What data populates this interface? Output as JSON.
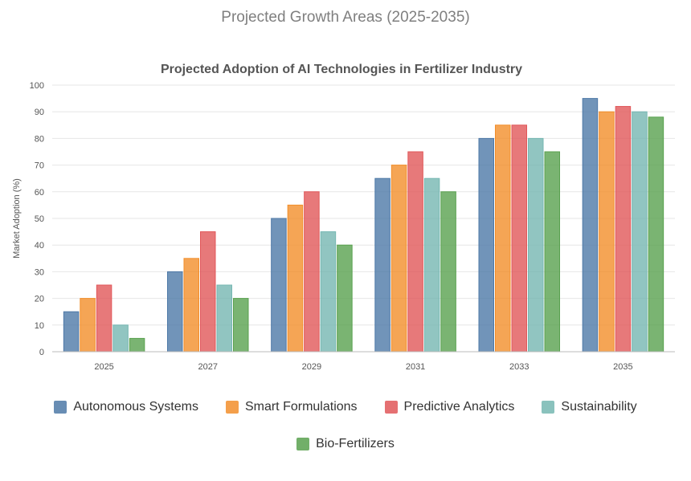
{
  "page": {
    "title": "Projected Growth Areas (2025-2035)"
  },
  "chart_data": {
    "type": "bar",
    "title": "Projected Adoption of AI Technologies in Fertilizer Industry",
    "xlabel": "",
    "ylabel": "Market Adoption (%)",
    "ylim": [
      0,
      100
    ],
    "yticks": [
      "0",
      "10",
      "20",
      "30",
      "40",
      "50",
      "60",
      "70",
      "80",
      "90",
      "100"
    ],
    "grid": true,
    "legend_position": "bottom",
    "categories": [
      "2025",
      "2027",
      "2029",
      "2031",
      "2033",
      "2035"
    ],
    "series": [
      {
        "name": "Autonomous Systems",
        "color": "#4e79a7",
        "values": [
          15,
          30,
          50,
          65,
          80,
          95
        ]
      },
      {
        "name": "Smart Formulations",
        "color": "#f28e2b",
        "values": [
          20,
          35,
          55,
          70,
          85,
          90
        ]
      },
      {
        "name": "Predictive Analytics",
        "color": "#e15759",
        "values": [
          25,
          45,
          60,
          75,
          85,
          92
        ]
      },
      {
        "name": "Sustainability",
        "color": "#76b7b2",
        "values": [
          10,
          25,
          45,
          65,
          80,
          90
        ]
      },
      {
        "name": "Bio-Fertilizers",
        "color": "#59a14f",
        "values": [
          5,
          20,
          40,
          60,
          75,
          88
        ]
      }
    ]
  }
}
